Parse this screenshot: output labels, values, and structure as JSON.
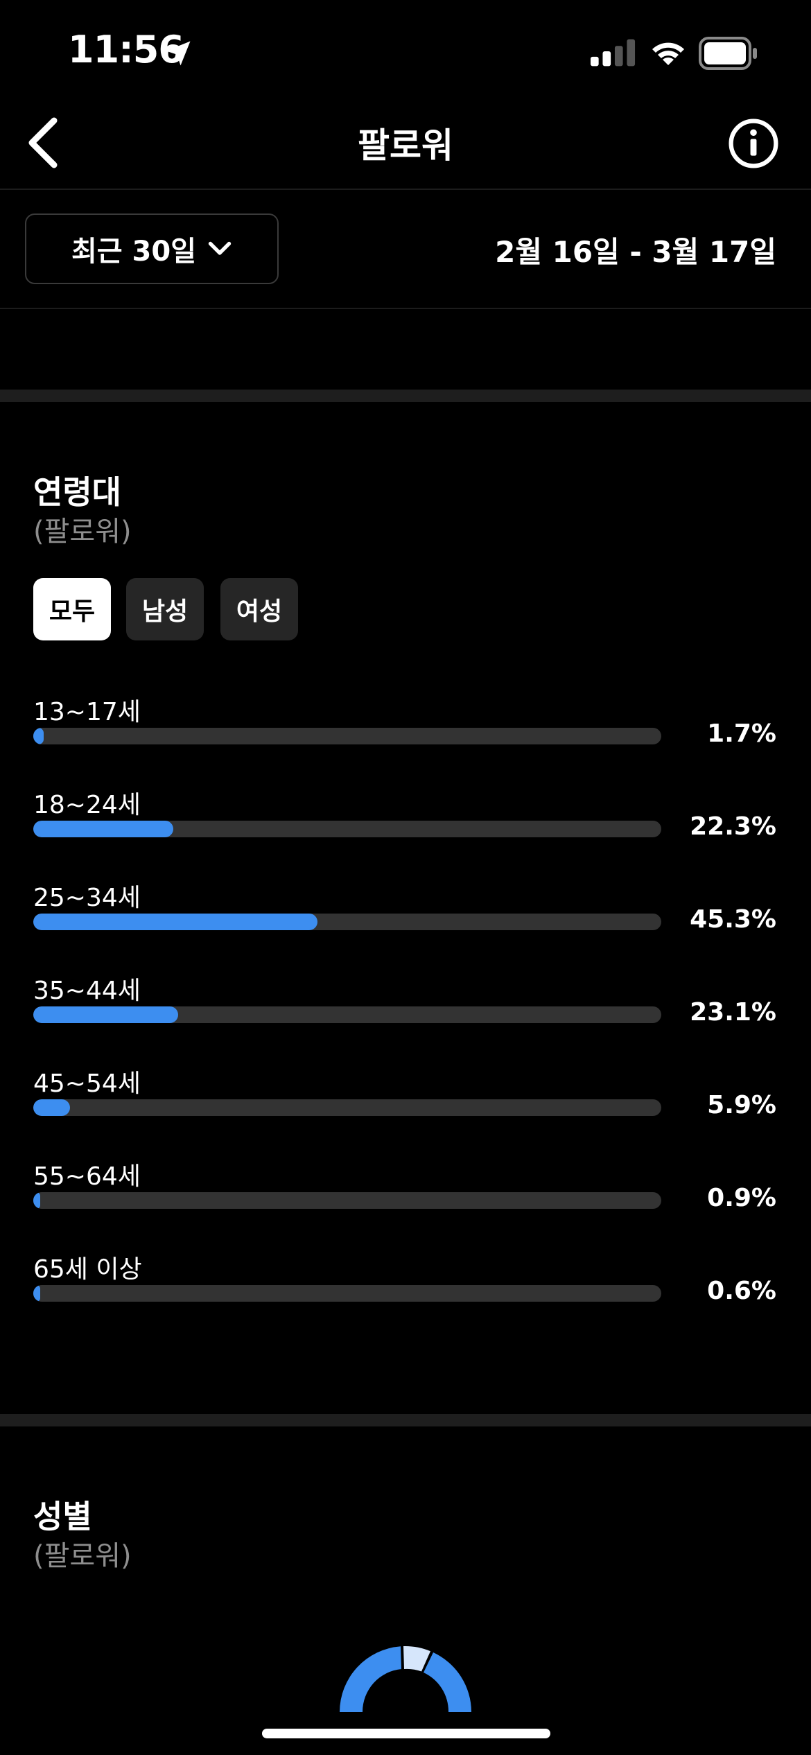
{
  "status_bar": {
    "time": "11:56"
  },
  "header": {
    "title": "팔로워"
  },
  "filters": {
    "range_label": "최근 30일",
    "date_range": "2월 16일 - 3월 17일"
  },
  "age_section": {
    "title": "연령대",
    "subtitle": "(팔로워)",
    "tabs": [
      {
        "label": "모두",
        "selected": true
      },
      {
        "label": "남성",
        "selected": false
      },
      {
        "label": "여성",
        "selected": false
      }
    ],
    "rows": [
      {
        "label": "13~17세",
        "percent_text": "1.7%",
        "value": 1.7
      },
      {
        "label": "18~24세",
        "percent_text": "22.3%",
        "value": 22.3
      },
      {
        "label": "25~34세",
        "percent_text": "45.3%",
        "value": 45.3
      },
      {
        "label": "35~44세",
        "percent_text": "23.1%",
        "value": 23.1
      },
      {
        "label": "45~54세",
        "percent_text": "5.9%",
        "value": 5.9
      },
      {
        "label": "55~64세",
        "percent_text": "0.9%",
        "value": 0.9
      },
      {
        "label": "65세 이상",
        "percent_text": "0.6%",
        "value": 0.6
      }
    ]
  },
  "gender_section": {
    "title": "성별",
    "subtitle": "(팔로워)"
  },
  "chart_data": {
    "type": "bar",
    "categories": [
      "13~17세",
      "18~24세",
      "25~34세",
      "35~44세",
      "45~54세",
      "55~64세",
      "65세 이상"
    ],
    "values": [
      1.7,
      22.3,
      45.3,
      23.1,
      5.9,
      0.9,
      0.6
    ],
    "title": "연령대",
    "xlabel": "",
    "ylabel": "",
    "ylim": [
      0,
      100
    ]
  },
  "colors": {
    "accent": "#3d8ef0",
    "track": "#333333",
    "background": "#000000"
  },
  "icons": [
    "location-arrow-icon",
    "signal-icon",
    "wifi-icon",
    "battery-icon",
    "chevron-left-icon",
    "info-icon",
    "chevron-down-icon"
  ]
}
